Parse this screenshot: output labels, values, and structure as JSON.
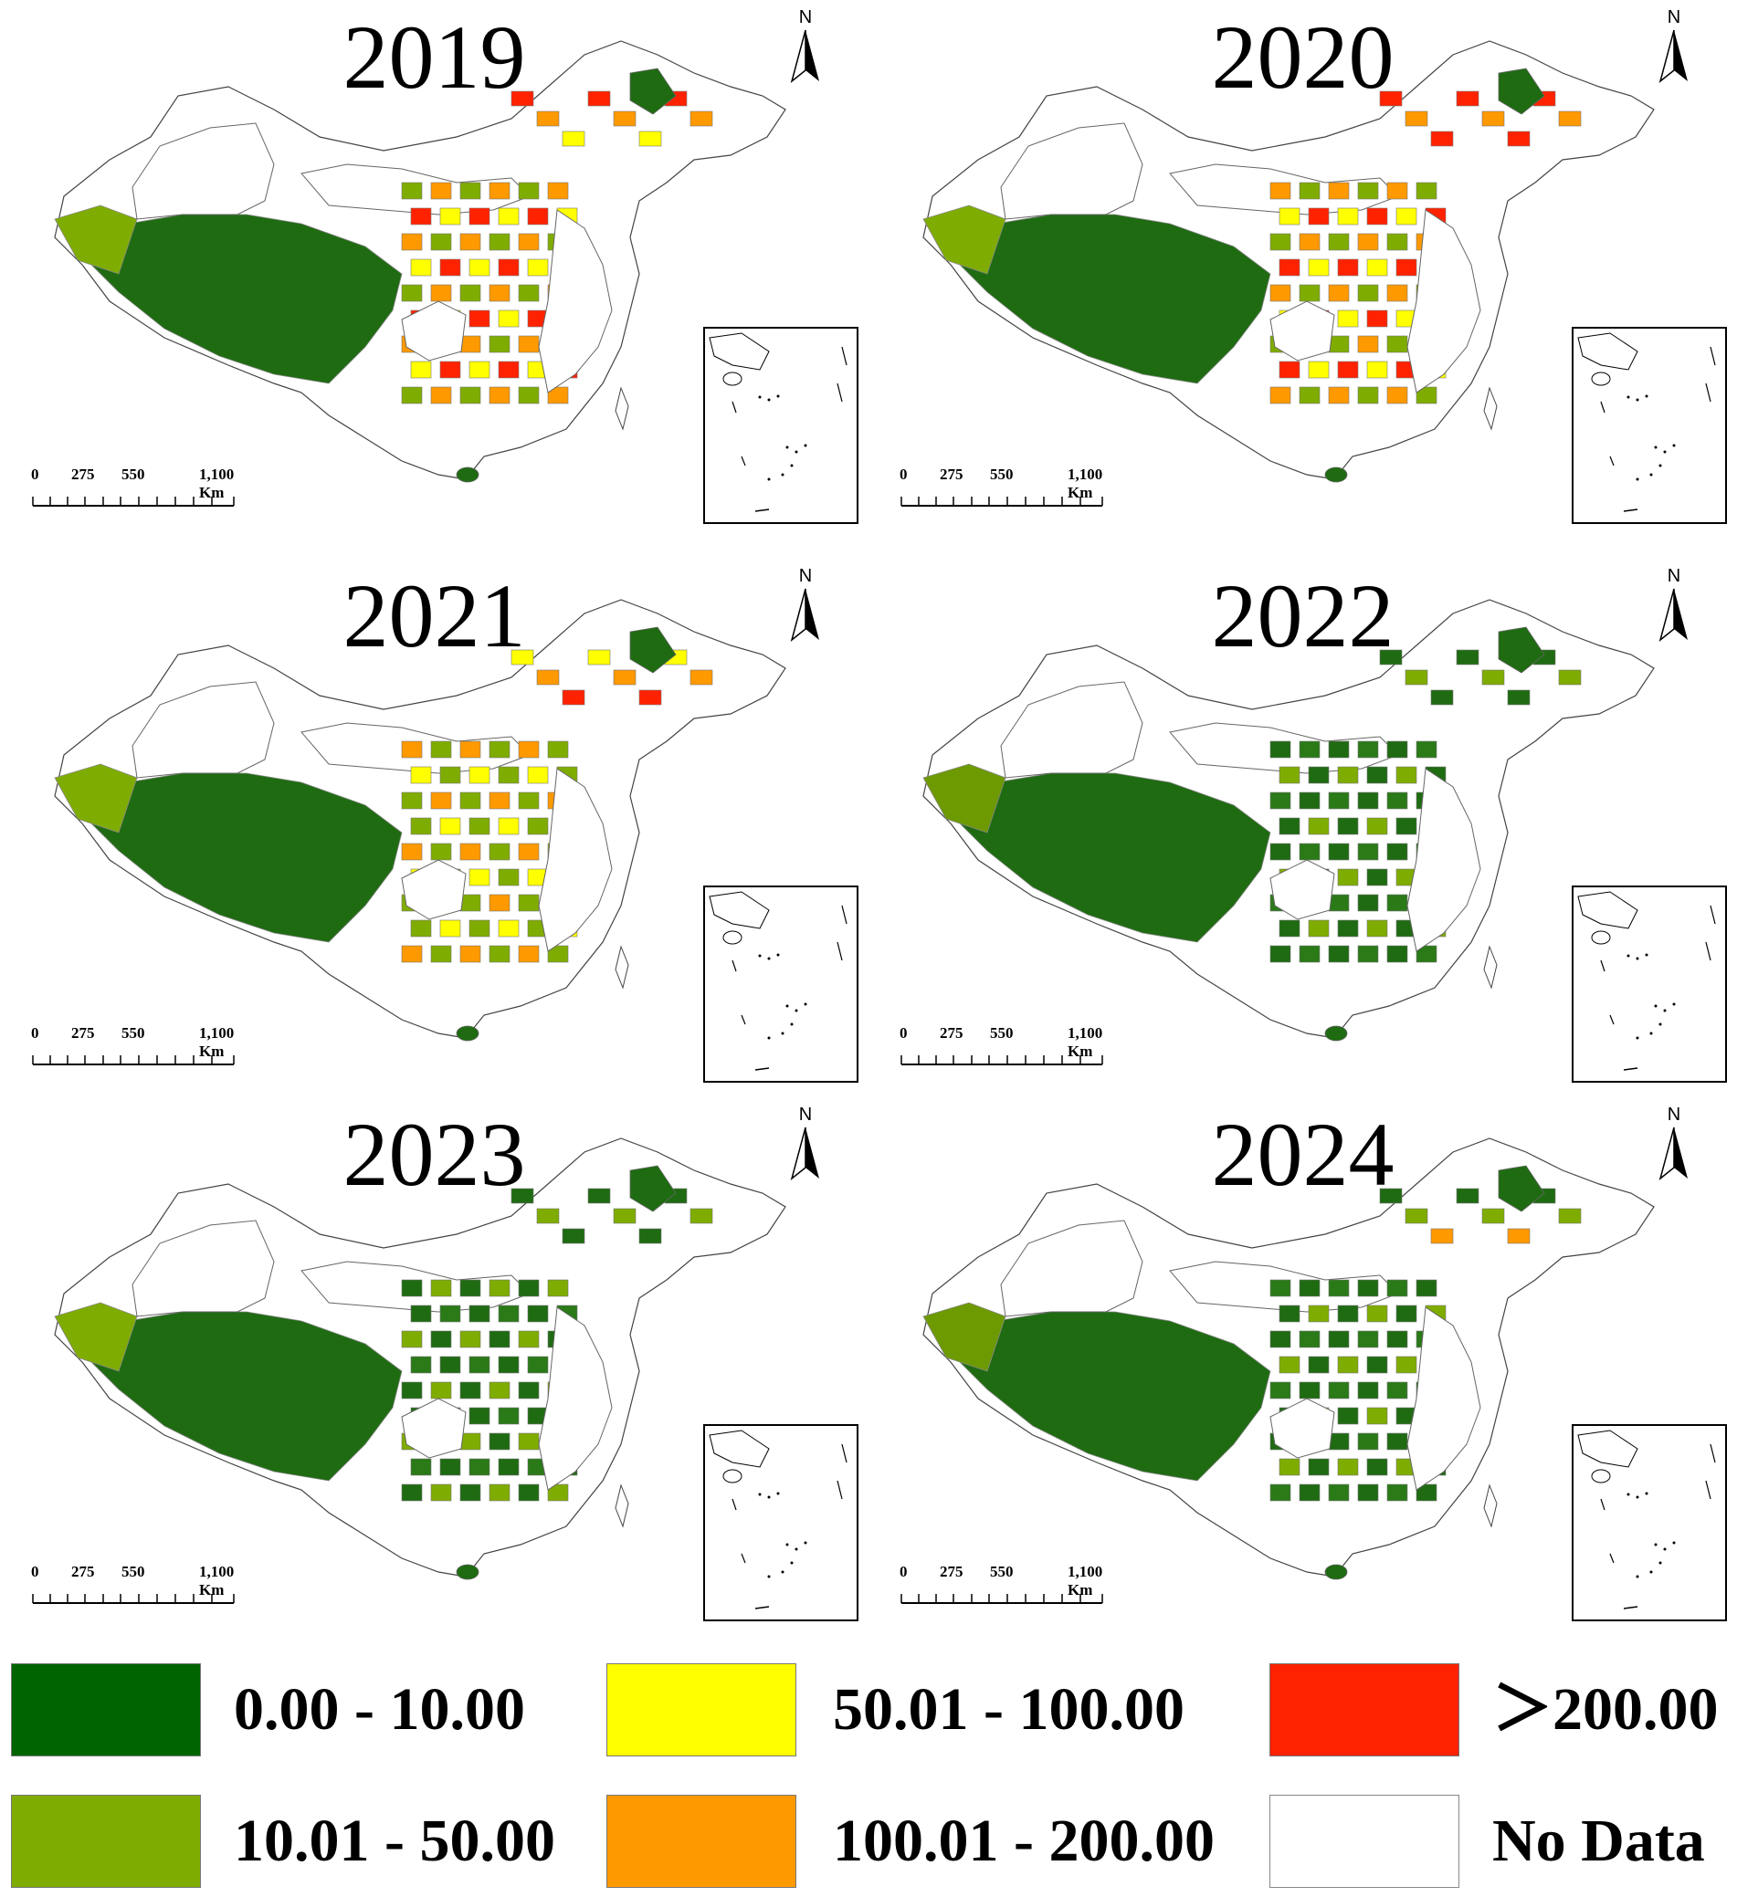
{
  "panels": [
    {
      "year": "2019"
    },
    {
      "year": "2020"
    },
    {
      "year": "2021"
    },
    {
      "year": "2022"
    },
    {
      "year": "2023"
    },
    {
      "year": "2024"
    }
  ],
  "north_label": "N",
  "scale": {
    "labels": [
      "0",
      "275",
      "550",
      "1,100 Km"
    ]
  },
  "legend": {
    "items": [
      {
        "label": "0.00 - 10.00",
        "color": "#006400"
      },
      {
        "label": "10.01 - 50.00",
        "color": "#7fac00"
      },
      {
        "label": "50.01 - 100.00",
        "color": "#ffff00"
      },
      {
        "label": "100.01 - 200.00",
        "color": "#ff9900"
      },
      {
        "label": "＞200.00",
        "color": "#ff2200"
      },
      {
        "label": "No Data",
        "color": "#ffffff"
      }
    ]
  }
}
